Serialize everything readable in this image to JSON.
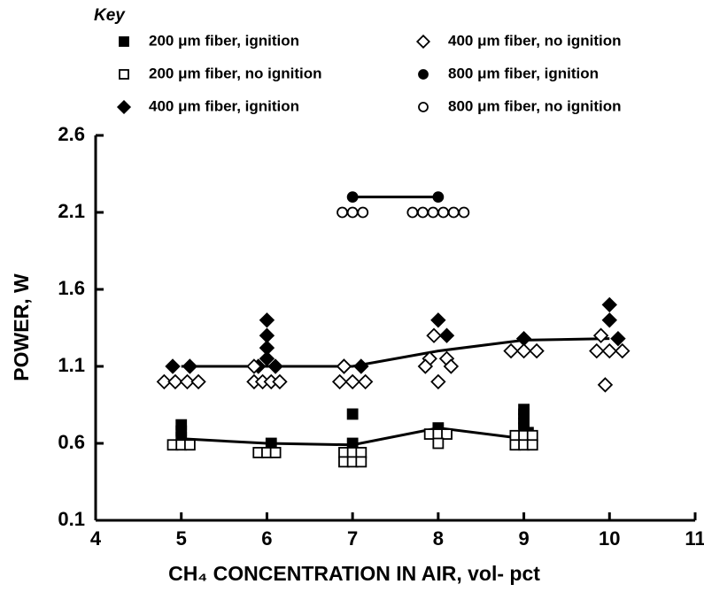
{
  "chart_data": {
    "type": "scatter",
    "legend_title": "Key",
    "xlabel": "CH₄ CONCENTRATION IN AIR, vol- pct",
    "ylabel": "POWER, W",
    "xlim": [
      4,
      11
    ],
    "xticks": [
      4,
      5,
      6,
      7,
      8,
      9,
      10,
      11
    ],
    "ylim": [
      0.1,
      2.6
    ],
    "yticks": [
      0.1,
      0.6,
      1.1,
      1.6,
      2.1,
      2.6
    ],
    "series": [
      {
        "name": "200 μm fiber, ignition",
        "marker": "square",
        "filled": true,
        "color": "#000000",
        "x": [
          5.0,
          5.0,
          5.0,
          6.05,
          7.0,
          7.0,
          8.0,
          9.0,
          9.0,
          9.0,
          9.0,
          9.0,
          9.05,
          9.05,
          9.05
        ],
        "values": [
          0.72,
          0.68,
          0.64,
          0.6,
          0.79,
          0.6,
          0.7,
          0.82,
          0.79,
          0.76,
          0.73,
          0.7,
          0.67,
          0.64,
          0.61
        ],
        "line": {
          "x": [
            5,
            6,
            7,
            8,
            9
          ],
          "values": [
            0.63,
            0.6,
            0.59,
            0.7,
            0.63
          ]
        }
      },
      {
        "name": "200 μm fiber, no ignition",
        "marker": "square",
        "filled": false,
        "color": "#000000",
        "x": [
          4.9,
          5.0,
          5.1,
          5.9,
          6.0,
          6.1,
          6.9,
          7.0,
          7.1,
          6.9,
          7.0,
          7.1,
          7.9,
          8.0,
          8.1,
          8.0,
          8.9,
          9.0,
          9.1,
          8.9,
          9.0,
          9.1
        ],
        "values": [
          0.59,
          0.59,
          0.59,
          0.54,
          0.54,
          0.54,
          0.54,
          0.54,
          0.54,
          0.48,
          0.48,
          0.48,
          0.66,
          0.66,
          0.66,
          0.6,
          0.65,
          0.65,
          0.65,
          0.59,
          0.59,
          0.59
        ]
      },
      {
        "name": "400 μm fiber, ignition",
        "marker": "diamond",
        "filled": true,
        "color": "#000000",
        "x": [
          4.9,
          5.1,
          6.0,
          6.0,
          6.0,
          6.0,
          5.9,
          6.1,
          6.9,
          7.1,
          8.0,
          8.1,
          9.0,
          10.0,
          10.0,
          10.1
        ],
        "values": [
          1.1,
          1.1,
          1.4,
          1.3,
          1.22,
          1.15,
          1.1,
          1.1,
          1.1,
          1.1,
          1.4,
          1.3,
          1.28,
          1.5,
          1.4,
          1.28
        ],
        "line": {
          "x": [
            5,
            6,
            7,
            8,
            9,
            10
          ],
          "values": [
            1.1,
            1.1,
            1.1,
            1.2,
            1.27,
            1.28
          ]
        }
      },
      {
        "name": "400 μm fiber, no ignition",
        "marker": "diamond",
        "filled": false,
        "color": "#000000",
        "x": [
          4.8,
          4.93,
          5.07,
          5.2,
          5.85,
          5.85,
          5.95,
          6.05,
          6.15,
          6.85,
          7.0,
          7.15,
          6.9,
          7.95,
          7.9,
          8.1,
          7.85,
          8.15,
          8.0,
          8.85,
          9.0,
          9.15,
          9.9,
          9.85,
          10.0,
          10.15,
          9.95
        ],
        "values": [
          1.0,
          1.0,
          1.0,
          1.0,
          1.1,
          1.0,
          1.0,
          1.0,
          1.0,
          1.0,
          1.0,
          1.0,
          1.1,
          1.3,
          1.15,
          1.15,
          1.1,
          1.1,
          1.0,
          1.2,
          1.2,
          1.2,
          1.3,
          1.2,
          1.2,
          1.2,
          0.98
        ]
      },
      {
        "name": "800 μm fiber, ignition",
        "marker": "circle",
        "filled": true,
        "color": "#000000",
        "x": [
          7.0,
          8.0
        ],
        "values": [
          2.2,
          2.2
        ],
        "line": {
          "x": [
            7,
            8
          ],
          "values": [
            2.2,
            2.2
          ]
        }
      },
      {
        "name": "800 μm fiber, no ignition",
        "marker": "circle",
        "filled": false,
        "color": "#000000",
        "x": [
          6.88,
          7.0,
          7.12,
          7.7,
          7.82,
          7.94,
          8.06,
          8.18,
          8.3
        ],
        "values": [
          2.1,
          2.1,
          2.1,
          2.1,
          2.1,
          2.1,
          2.1,
          2.1,
          2.1
        ]
      }
    ]
  }
}
